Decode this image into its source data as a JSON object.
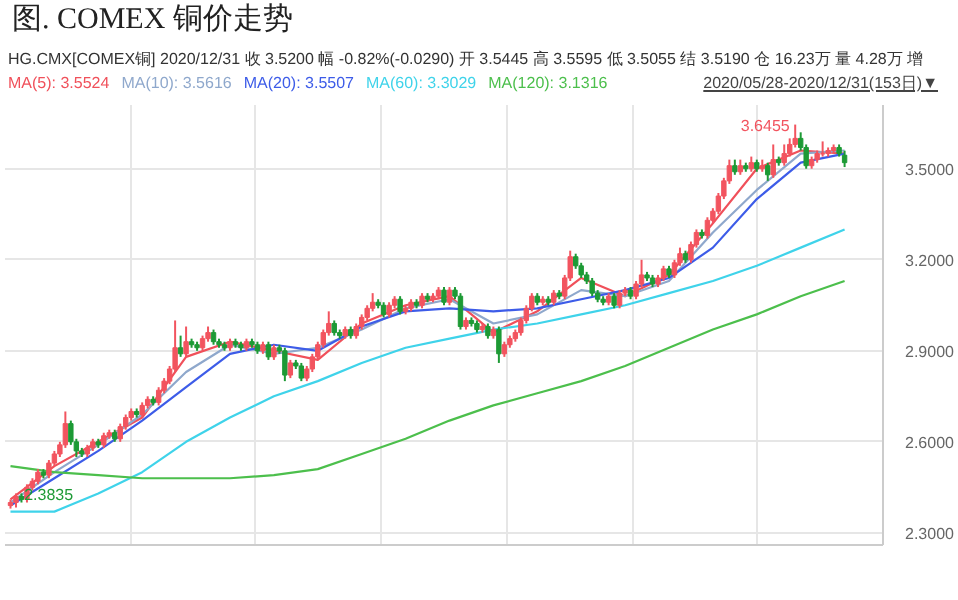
{
  "chart_data": {
    "type": "candlestick",
    "title": "图. COMEX 铜价走势",
    "subtitle": "HG.CMX[COMEX铜]   2020/12/31   收 3.5200   幅 -0.82%(-0.0290)   开 3.5445   高 3.5595   低 3.5055   结 3.5190   仓 16.23万   量 4.28万   增",
    "categories": [
      null,
      null,
      null,
      null,
      null,
      null,
      null,
      null,
      null,
      null,
      null,
      null,
      null,
      null,
      null,
      null,
      null,
      null,
      null,
      null,
      null,
      null,
      null,
      null,
      null,
      null,
      null,
      null,
      null,
      null,
      null,
      null,
      null,
      null,
      null,
      null,
      null,
      null,
      null,
      null,
      null,
      null,
      null,
      null,
      null,
      null,
      null,
      null,
      null,
      null,
      null,
      null,
      null,
      null,
      null,
      null,
      null,
      null,
      null,
      null,
      null,
      null,
      null,
      null,
      null,
      null,
      null,
      null,
      null,
      null,
      null,
      null,
      null,
      null,
      null,
      null,
      null,
      null,
      null,
      null,
      null,
      null,
      null,
      null,
      null,
      null,
      null,
      null,
      null,
      null,
      null,
      null,
      null,
      null,
      null,
      null,
      null,
      null,
      null,
      null,
      null,
      null,
      null,
      null,
      null,
      null,
      null,
      null,
      null,
      null,
      null,
      null,
      null,
      null,
      null,
      null,
      null,
      null,
      null,
      null,
      null,
      null,
      null,
      null,
      null,
      null,
      null,
      null,
      null,
      null,
      null,
      null,
      null,
      null,
      null,
      null,
      null,
      null,
      null,
      null,
      null,
      null,
      null,
      null,
      null,
      null,
      null,
      null,
      null,
      null,
      null,
      null,
      null
    ],
    "ohlc": [
      [
        2.39,
        2.41,
        2.38,
        2.4
      ],
      [
        2.4,
        2.43,
        2.3835,
        2.42
      ],
      [
        2.42,
        2.43,
        2.4,
        2.41
      ],
      [
        2.41,
        2.46,
        2.4,
        2.45
      ],
      [
        2.45,
        2.48,
        2.44,
        2.47
      ],
      [
        2.47,
        2.51,
        2.46,
        2.5
      ],
      [
        2.5,
        2.51,
        2.48,
        2.49
      ],
      [
        2.49,
        2.54,
        2.48,
        2.53
      ],
      [
        2.53,
        2.57,
        2.52,
        2.56
      ],
      [
        2.56,
        2.6,
        2.55,
        2.59
      ],
      [
        2.59,
        2.7,
        2.58,
        2.66
      ],
      [
        2.66,
        2.67,
        2.59,
        2.6
      ],
      [
        2.6,
        2.61,
        2.55,
        2.57
      ],
      [
        2.57,
        2.58,
        2.55,
        2.56
      ],
      [
        2.56,
        2.59,
        2.55,
        2.58
      ],
      [
        2.58,
        2.61,
        2.57,
        2.6
      ],
      [
        2.6,
        2.61,
        2.58,
        2.59
      ],
      [
        2.59,
        2.63,
        2.58,
        2.62
      ],
      [
        2.62,
        2.64,
        2.61,
        2.63
      ],
      [
        2.63,
        2.64,
        2.6,
        2.61
      ],
      [
        2.61,
        2.66,
        2.6,
        2.65
      ],
      [
        2.65,
        2.69,
        2.64,
        2.68
      ],
      [
        2.68,
        2.71,
        2.67,
        2.7
      ],
      [
        2.7,
        2.71,
        2.68,
        2.69
      ],
      [
        2.69,
        2.73,
        2.68,
        2.72
      ],
      [
        2.72,
        2.75,
        2.71,
        2.74
      ],
      [
        2.74,
        2.75,
        2.72,
        2.73
      ],
      [
        2.73,
        2.78,
        2.72,
        2.77
      ],
      [
        2.77,
        2.81,
        2.76,
        2.8
      ],
      [
        2.8,
        2.85,
        2.79,
        2.84
      ],
      [
        2.84,
        3.0,
        2.83,
        2.91
      ],
      [
        2.91,
        2.95,
        2.88,
        2.89
      ],
      [
        2.89,
        2.98,
        2.88,
        2.93
      ],
      [
        2.93,
        2.94,
        2.91,
        2.92
      ],
      [
        2.92,
        2.93,
        2.9,
        2.91
      ],
      [
        2.91,
        2.95,
        2.9,
        2.94
      ],
      [
        2.94,
        2.98,
        2.93,
        2.96
      ],
      [
        2.96,
        2.97,
        2.92,
        2.93
      ],
      [
        2.93,
        2.94,
        2.91,
        2.92
      ],
      [
        2.92,
        2.93,
        2.9,
        2.91
      ],
      [
        2.91,
        2.94,
        2.9,
        2.93
      ],
      [
        2.93,
        2.94,
        2.91,
        2.92
      ],
      [
        2.92,
        2.93,
        2.9,
        2.91
      ],
      [
        2.91,
        2.94,
        2.9,
        2.93
      ],
      [
        2.93,
        2.94,
        2.91,
        2.92
      ],
      [
        2.92,
        2.93,
        2.89,
        2.9
      ],
      [
        2.9,
        2.93,
        2.89,
        2.92
      ],
      [
        2.92,
        2.93,
        2.87,
        2.88
      ],
      [
        2.88,
        2.92,
        2.87,
        2.91
      ],
      [
        2.91,
        2.92,
        2.89,
        2.9
      ],
      [
        2.9,
        2.91,
        2.8,
        2.82
      ],
      [
        2.82,
        2.87,
        2.81,
        2.86
      ],
      [
        2.86,
        2.87,
        2.84,
        2.85
      ],
      [
        2.85,
        2.86,
        2.8,
        2.81
      ],
      [
        2.81,
        2.85,
        2.8,
        2.84
      ],
      [
        2.84,
        2.89,
        2.83,
        2.88
      ],
      [
        2.88,
        2.93,
        2.87,
        2.92
      ],
      [
        2.92,
        2.97,
        2.91,
        2.96
      ],
      [
        2.96,
        3.03,
        2.95,
        2.99
      ],
      [
        2.99,
        3.0,
        2.95,
        2.96
      ],
      [
        2.96,
        2.97,
        2.94,
        2.95
      ],
      [
        2.95,
        2.98,
        2.94,
        2.97
      ],
      [
        2.97,
        2.98,
        2.94,
        2.95
      ],
      [
        2.95,
        2.99,
        2.94,
        2.98
      ],
      [
        2.98,
        3.02,
        2.97,
        3.01
      ],
      [
        3.01,
        3.05,
        3.0,
        3.04
      ],
      [
        3.04,
        3.09,
        3.03,
        3.06
      ],
      [
        3.06,
        3.07,
        3.04,
        3.05
      ],
      [
        3.05,
        3.06,
        3.01,
        3.02
      ],
      [
        3.02,
        3.06,
        3.01,
        3.05
      ],
      [
        3.05,
        3.08,
        3.04,
        3.07
      ],
      [
        3.07,
        3.08,
        3.02,
        3.03
      ],
      [
        3.03,
        3.05,
        3.02,
        3.04
      ],
      [
        3.04,
        3.07,
        3.03,
        3.06
      ],
      [
        3.06,
        3.07,
        3.04,
        3.05
      ],
      [
        3.05,
        3.09,
        3.04,
        3.08
      ],
      [
        3.08,
        3.09,
        3.06,
        3.07
      ],
      [
        3.07,
        3.09,
        3.06,
        3.08
      ],
      [
        3.08,
        3.11,
        3.07,
        3.1
      ],
      [
        3.1,
        3.11,
        3.05,
        3.06
      ],
      [
        3.06,
        3.11,
        3.05,
        3.1
      ],
      [
        3.1,
        3.11,
        3.07,
        3.08
      ],
      [
        3.08,
        3.09,
        2.97,
        2.98
      ],
      [
        2.98,
        3.01,
        2.97,
        3.0
      ],
      [
        3.0,
        3.01,
        2.98,
        2.99
      ],
      [
        2.99,
        3.0,
        2.96,
        2.97
      ],
      [
        2.97,
        2.99,
        2.96,
        2.98
      ],
      [
        2.98,
        2.99,
        2.94,
        2.95
      ],
      [
        2.95,
        2.98,
        2.94,
        2.97
      ],
      [
        2.97,
        2.98,
        2.86,
        2.89
      ],
      [
        2.89,
        2.93,
        2.88,
        2.92
      ],
      [
        2.92,
        2.95,
        2.91,
        2.94
      ],
      [
        2.94,
        2.97,
        2.93,
        2.96
      ],
      [
        2.96,
        3.01,
        2.95,
        3.0
      ],
      [
        3.0,
        3.05,
        2.99,
        3.04
      ],
      [
        3.04,
        3.09,
        3.03,
        3.08
      ],
      [
        3.08,
        3.09,
        3.05,
        3.06
      ],
      [
        3.06,
        3.08,
        3.05,
        3.07
      ],
      [
        3.07,
        3.08,
        3.05,
        3.06
      ],
      [
        3.06,
        3.1,
        3.05,
        3.09
      ],
      [
        3.09,
        3.1,
        3.07,
        3.08
      ],
      [
        3.08,
        3.15,
        3.07,
        3.14
      ],
      [
        3.14,
        3.23,
        3.13,
        3.21
      ],
      [
        3.21,
        3.22,
        3.17,
        3.18
      ],
      [
        3.18,
        3.19,
        3.14,
        3.15
      ],
      [
        3.15,
        3.16,
        3.12,
        3.13
      ],
      [
        3.13,
        3.14,
        3.08,
        3.09
      ],
      [
        3.09,
        3.1,
        3.06,
        3.07
      ],
      [
        3.07,
        3.08,
        3.05,
        3.06
      ],
      [
        3.06,
        3.09,
        3.05,
        3.08
      ],
      [
        3.08,
        3.09,
        3.04,
        3.05
      ],
      [
        3.05,
        3.1,
        3.04,
        3.09
      ],
      [
        3.09,
        3.11,
        3.08,
        3.1
      ],
      [
        3.1,
        3.11,
        3.07,
        3.08
      ],
      [
        3.08,
        3.13,
        3.07,
        3.12
      ],
      [
        3.12,
        3.2,
        3.11,
        3.15
      ],
      [
        3.15,
        3.16,
        3.13,
        3.14
      ],
      [
        3.14,
        3.15,
        3.11,
        3.12
      ],
      [
        3.12,
        3.15,
        3.11,
        3.14
      ],
      [
        3.14,
        3.18,
        3.13,
        3.17
      ],
      [
        3.17,
        3.18,
        3.14,
        3.15
      ],
      [
        3.15,
        3.2,
        3.14,
        3.19
      ],
      [
        3.19,
        3.24,
        3.18,
        3.22
      ],
      [
        3.22,
        3.23,
        3.19,
        3.2
      ],
      [
        3.2,
        3.26,
        3.19,
        3.25
      ],
      [
        3.25,
        3.3,
        3.24,
        3.29
      ],
      [
        3.29,
        3.3,
        3.27,
        3.28
      ],
      [
        3.28,
        3.34,
        3.27,
        3.33
      ],
      [
        3.33,
        3.37,
        3.32,
        3.36
      ],
      [
        3.36,
        3.42,
        3.35,
        3.41
      ],
      [
        3.41,
        3.47,
        3.4,
        3.46
      ],
      [
        3.46,
        3.53,
        3.45,
        3.51
      ],
      [
        3.51,
        3.53,
        3.48,
        3.49
      ],
      [
        3.49,
        3.53,
        3.48,
        3.51
      ],
      [
        3.51,
        3.52,
        3.49,
        3.5
      ],
      [
        3.5,
        3.54,
        3.49,
        3.52
      ],
      [
        3.52,
        3.53,
        3.49,
        3.5
      ],
      [
        3.5,
        3.53,
        3.49,
        3.51
      ],
      [
        3.51,
        3.52,
        3.46,
        3.48
      ],
      [
        3.48,
        3.58,
        3.47,
        3.53
      ],
      [
        3.53,
        3.54,
        3.51,
        3.52
      ],
      [
        3.52,
        3.58,
        3.51,
        3.55
      ],
      [
        3.55,
        3.6,
        3.54,
        3.58
      ],
      [
        3.58,
        3.6455,
        3.57,
        3.6
      ],
      [
        3.6,
        3.62,
        3.56,
        3.57
      ],
      [
        3.57,
        3.58,
        3.5,
        3.51
      ],
      [
        3.51,
        3.54,
        3.5,
        3.53
      ],
      [
        3.53,
        3.56,
        3.52,
        3.55
      ],
      [
        3.55,
        3.59,
        3.54,
        3.55
      ],
      [
        3.55,
        3.57,
        3.54,
        3.56
      ],
      [
        3.56,
        3.58,
        3.55,
        3.57
      ],
      [
        3.57,
        3.58,
        3.54,
        3.55
      ],
      [
        3.5445,
        3.5595,
        3.5055,
        3.52
      ]
    ],
    "series": [
      {
        "type": "line",
        "name": "MA(5): 3.5524",
        "color": "#f0505a",
        "values": [
          2.41,
          null,
          null,
          null,
          null,
          null,
          null,
          null,
          2.52,
          null,
          null,
          null,
          null,
          null,
          null,
          null,
          2.6,
          null,
          null,
          null,
          null,
          null,
          null,
          null,
          2.68,
          null,
          null,
          null,
          null,
          null,
          null,
          null,
          2.88,
          null,
          null,
          null,
          null,
          null,
          null,
          null,
          2.93,
          null,
          null,
          null,
          null,
          null,
          null,
          null,
          2.9,
          null,
          null,
          null,
          null,
          null,
          null,
          null,
          2.87,
          null,
          null,
          null,
          null,
          null,
          null,
          null,
          2.99,
          null,
          null,
          null,
          null,
          null,
          null,
          null,
          3.05,
          null,
          null,
          null,
          null,
          null,
          null,
          null,
          3.08,
          null,
          null,
          null,
          null,
          null,
          null,
          null,
          2.96,
          null,
          null,
          null,
          null,
          null,
          null,
          null,
          3.03,
          null,
          null,
          null,
          null,
          null,
          null,
          null,
          3.14,
          null,
          null,
          null,
          null,
          null,
          null,
          null,
          3.08,
          null,
          null,
          null,
          null,
          null,
          null,
          null,
          3.15,
          null,
          null,
          null,
          null,
          null,
          null,
          null,
          3.32,
          null,
          null,
          null,
          null,
          null,
          null,
          null,
          3.5,
          null,
          null,
          null,
          null,
          null,
          null,
          null,
          3.56,
          null,
          null,
          null,
          null,
          null,
          null,
          null,
          3.55
        ]
      },
      {
        "type": "line",
        "name": "MA(10): 3.5616",
        "color": "#8fa8cc",
        "values": [
          2.4,
          null,
          null,
          null,
          null,
          null,
          null,
          null,
          2.5,
          null,
          null,
          null,
          null,
          null,
          null,
          null,
          2.59,
          null,
          null,
          null,
          null,
          null,
          null,
          null,
          2.69,
          null,
          null,
          null,
          null,
          null,
          null,
          null,
          2.83,
          null,
          null,
          null,
          null,
          null,
          null,
          null,
          2.92,
          null,
          null,
          null,
          null,
          null,
          null,
          null,
          2.89,
          null,
          null,
          null,
          null,
          null,
          null,
          null,
          2.91,
          null,
          null,
          null,
          null,
          null,
          null,
          null,
          2.97,
          null,
          null,
          null,
          null,
          null,
          null,
          null,
          3.04,
          null,
          null,
          null,
          null,
          null,
          null,
          null,
          3.07,
          null,
          null,
          null,
          null,
          null,
          null,
          null,
          2.99,
          null,
          null,
          null,
          null,
          null,
          null,
          null,
          3.02,
          null,
          null,
          null,
          null,
          null,
          null,
          null,
          3.1,
          null,
          null,
          null,
          null,
          null,
          null,
          null,
          3.08,
          null,
          null,
          null,
          null,
          null,
          null,
          null,
          3.13,
          null,
          null,
          null,
          null,
          null,
          null,
          null,
          3.29,
          null,
          null,
          null,
          null,
          null,
          null,
          null,
          3.43,
          null,
          null,
          null,
          null,
          null,
          null,
          null,
          3.55,
          null,
          null,
          null,
          null,
          null,
          null,
          null,
          3.56
        ]
      },
      {
        "type": "line",
        "name": "MA(20): 3.5507",
        "color": "#3d5ce8",
        "values": [
          2.39,
          null,
          null,
          null,
          null,
          null,
          null,
          null,
          2.48,
          null,
          null,
          null,
          null,
          null,
          null,
          null,
          2.57,
          null,
          null,
          null,
          null,
          null,
          null,
          null,
          2.67,
          null,
          null,
          null,
          null,
          null,
          null,
          null,
          2.78,
          null,
          null,
          null,
          null,
          null,
          null,
          null,
          2.89,
          null,
          null,
          null,
          null,
          null,
          null,
          null,
          2.92,
          null,
          null,
          null,
          null,
          null,
          null,
          null,
          2.9,
          null,
          null,
          null,
          null,
          null,
          null,
          null,
          2.98,
          null,
          null,
          null,
          null,
          null,
          null,
          null,
          3.03,
          null,
          null,
          null,
          null,
          null,
          null,
          null,
          3.04,
          null,
          null,
          null,
          null,
          null,
          null,
          null,
          3.03,
          null,
          null,
          null,
          null,
          null,
          null,
          null,
          3.04,
          null,
          null,
          null,
          null,
          null,
          null,
          null,
          3.07,
          null,
          null,
          null,
          null,
          null,
          null,
          null,
          3.1,
          null,
          null,
          null,
          null,
          null,
          null,
          null,
          3.14,
          null,
          null,
          null,
          null,
          null,
          null,
          null,
          3.24,
          null,
          null,
          null,
          null,
          null,
          null,
          null,
          3.4,
          null,
          null,
          null,
          null,
          null,
          null,
          null,
          3.52,
          null,
          null,
          null,
          null,
          null,
          null,
          null,
          3.55
        ]
      },
      {
        "type": "line",
        "name": "MA(60): 3.3029",
        "color": "#3fd3ea",
        "values": [
          2.37,
          null,
          null,
          null,
          null,
          null,
          null,
          null,
          2.37,
          null,
          null,
          null,
          null,
          null,
          null,
          null,
          2.43,
          null,
          null,
          null,
          null,
          null,
          null,
          null,
          2.5,
          null,
          null,
          null,
          null,
          null,
          null,
          null,
          2.6,
          null,
          null,
          null,
          null,
          null,
          null,
          null,
          2.68,
          null,
          null,
          null,
          null,
          null,
          null,
          null,
          2.75,
          null,
          null,
          null,
          null,
          null,
          null,
          null,
          2.8,
          null,
          null,
          null,
          null,
          null,
          null,
          null,
          2.86,
          null,
          null,
          null,
          null,
          null,
          null,
          null,
          2.91,
          null,
          null,
          null,
          null,
          null,
          null,
          null,
          2.94,
          null,
          null,
          null,
          null,
          null,
          null,
          null,
          2.97,
          null,
          null,
          null,
          null,
          null,
          null,
          null,
          2.99,
          null,
          null,
          null,
          null,
          null,
          null,
          null,
          3.02,
          null,
          null,
          null,
          null,
          null,
          null,
          null,
          3.05,
          null,
          null,
          null,
          null,
          null,
          null,
          null,
          3.09,
          null,
          null,
          null,
          null,
          null,
          null,
          null,
          3.13,
          null,
          null,
          null,
          null,
          null,
          null,
          null,
          3.18,
          null,
          null,
          null,
          null,
          null,
          null,
          null,
          3.24,
          null,
          null,
          null,
          null,
          null,
          null,
          null,
          3.3
        ]
      },
      {
        "type": "line",
        "name": "MA(120): 3.1316",
        "color": "#4cbf4c",
        "values": [
          2.52,
          null,
          null,
          null,
          null,
          null,
          null,
          null,
          2.5,
          null,
          null,
          null,
          null,
          null,
          null,
          null,
          2.49,
          null,
          null,
          null,
          null,
          null,
          null,
          null,
          2.48,
          null,
          null,
          null,
          null,
          null,
          null,
          null,
          2.48,
          null,
          null,
          null,
          null,
          null,
          null,
          null,
          2.48,
          null,
          null,
          null,
          null,
          null,
          null,
          null,
          2.49,
          null,
          null,
          null,
          null,
          null,
          null,
          null,
          2.51,
          null,
          null,
          null,
          null,
          null,
          null,
          null,
          2.56,
          null,
          null,
          null,
          null,
          null,
          null,
          null,
          2.61,
          null,
          null,
          null,
          null,
          null,
          null,
          null,
          2.67,
          null,
          null,
          null,
          null,
          null,
          null,
          null,
          2.72,
          null,
          null,
          null,
          null,
          null,
          null,
          null,
          2.76,
          null,
          null,
          null,
          null,
          null,
          null,
          null,
          2.8,
          null,
          null,
          null,
          null,
          null,
          null,
          null,
          2.85,
          null,
          null,
          null,
          null,
          null,
          null,
          null,
          2.91,
          null,
          null,
          null,
          null,
          null,
          null,
          null,
          2.97,
          null,
          null,
          null,
          null,
          null,
          null,
          null,
          3.02,
          null,
          null,
          null,
          null,
          null,
          null,
          null,
          3.08,
          null,
          null,
          null,
          null,
          null,
          null,
          null,
          3.13
        ]
      }
    ],
    "annotations": [
      "3.6455",
      "2.3835",
      "2020/05/28-2020/12/31(153日)▼"
    ],
    "ylim": [
      2.26,
      3.71
    ],
    "yticks": [
      {
        "value": 2.3,
        "label": "2.3000"
      },
      {
        "value": 2.6,
        "label": "2.6000"
      },
      {
        "value": 2.9,
        "label": "2.9000"
      },
      {
        "value": 3.2,
        "label": "3.2000"
      },
      {
        "value": 3.5,
        "label": "3.5000"
      }
    ],
    "grid": true,
    "legend": "top left"
  }
}
